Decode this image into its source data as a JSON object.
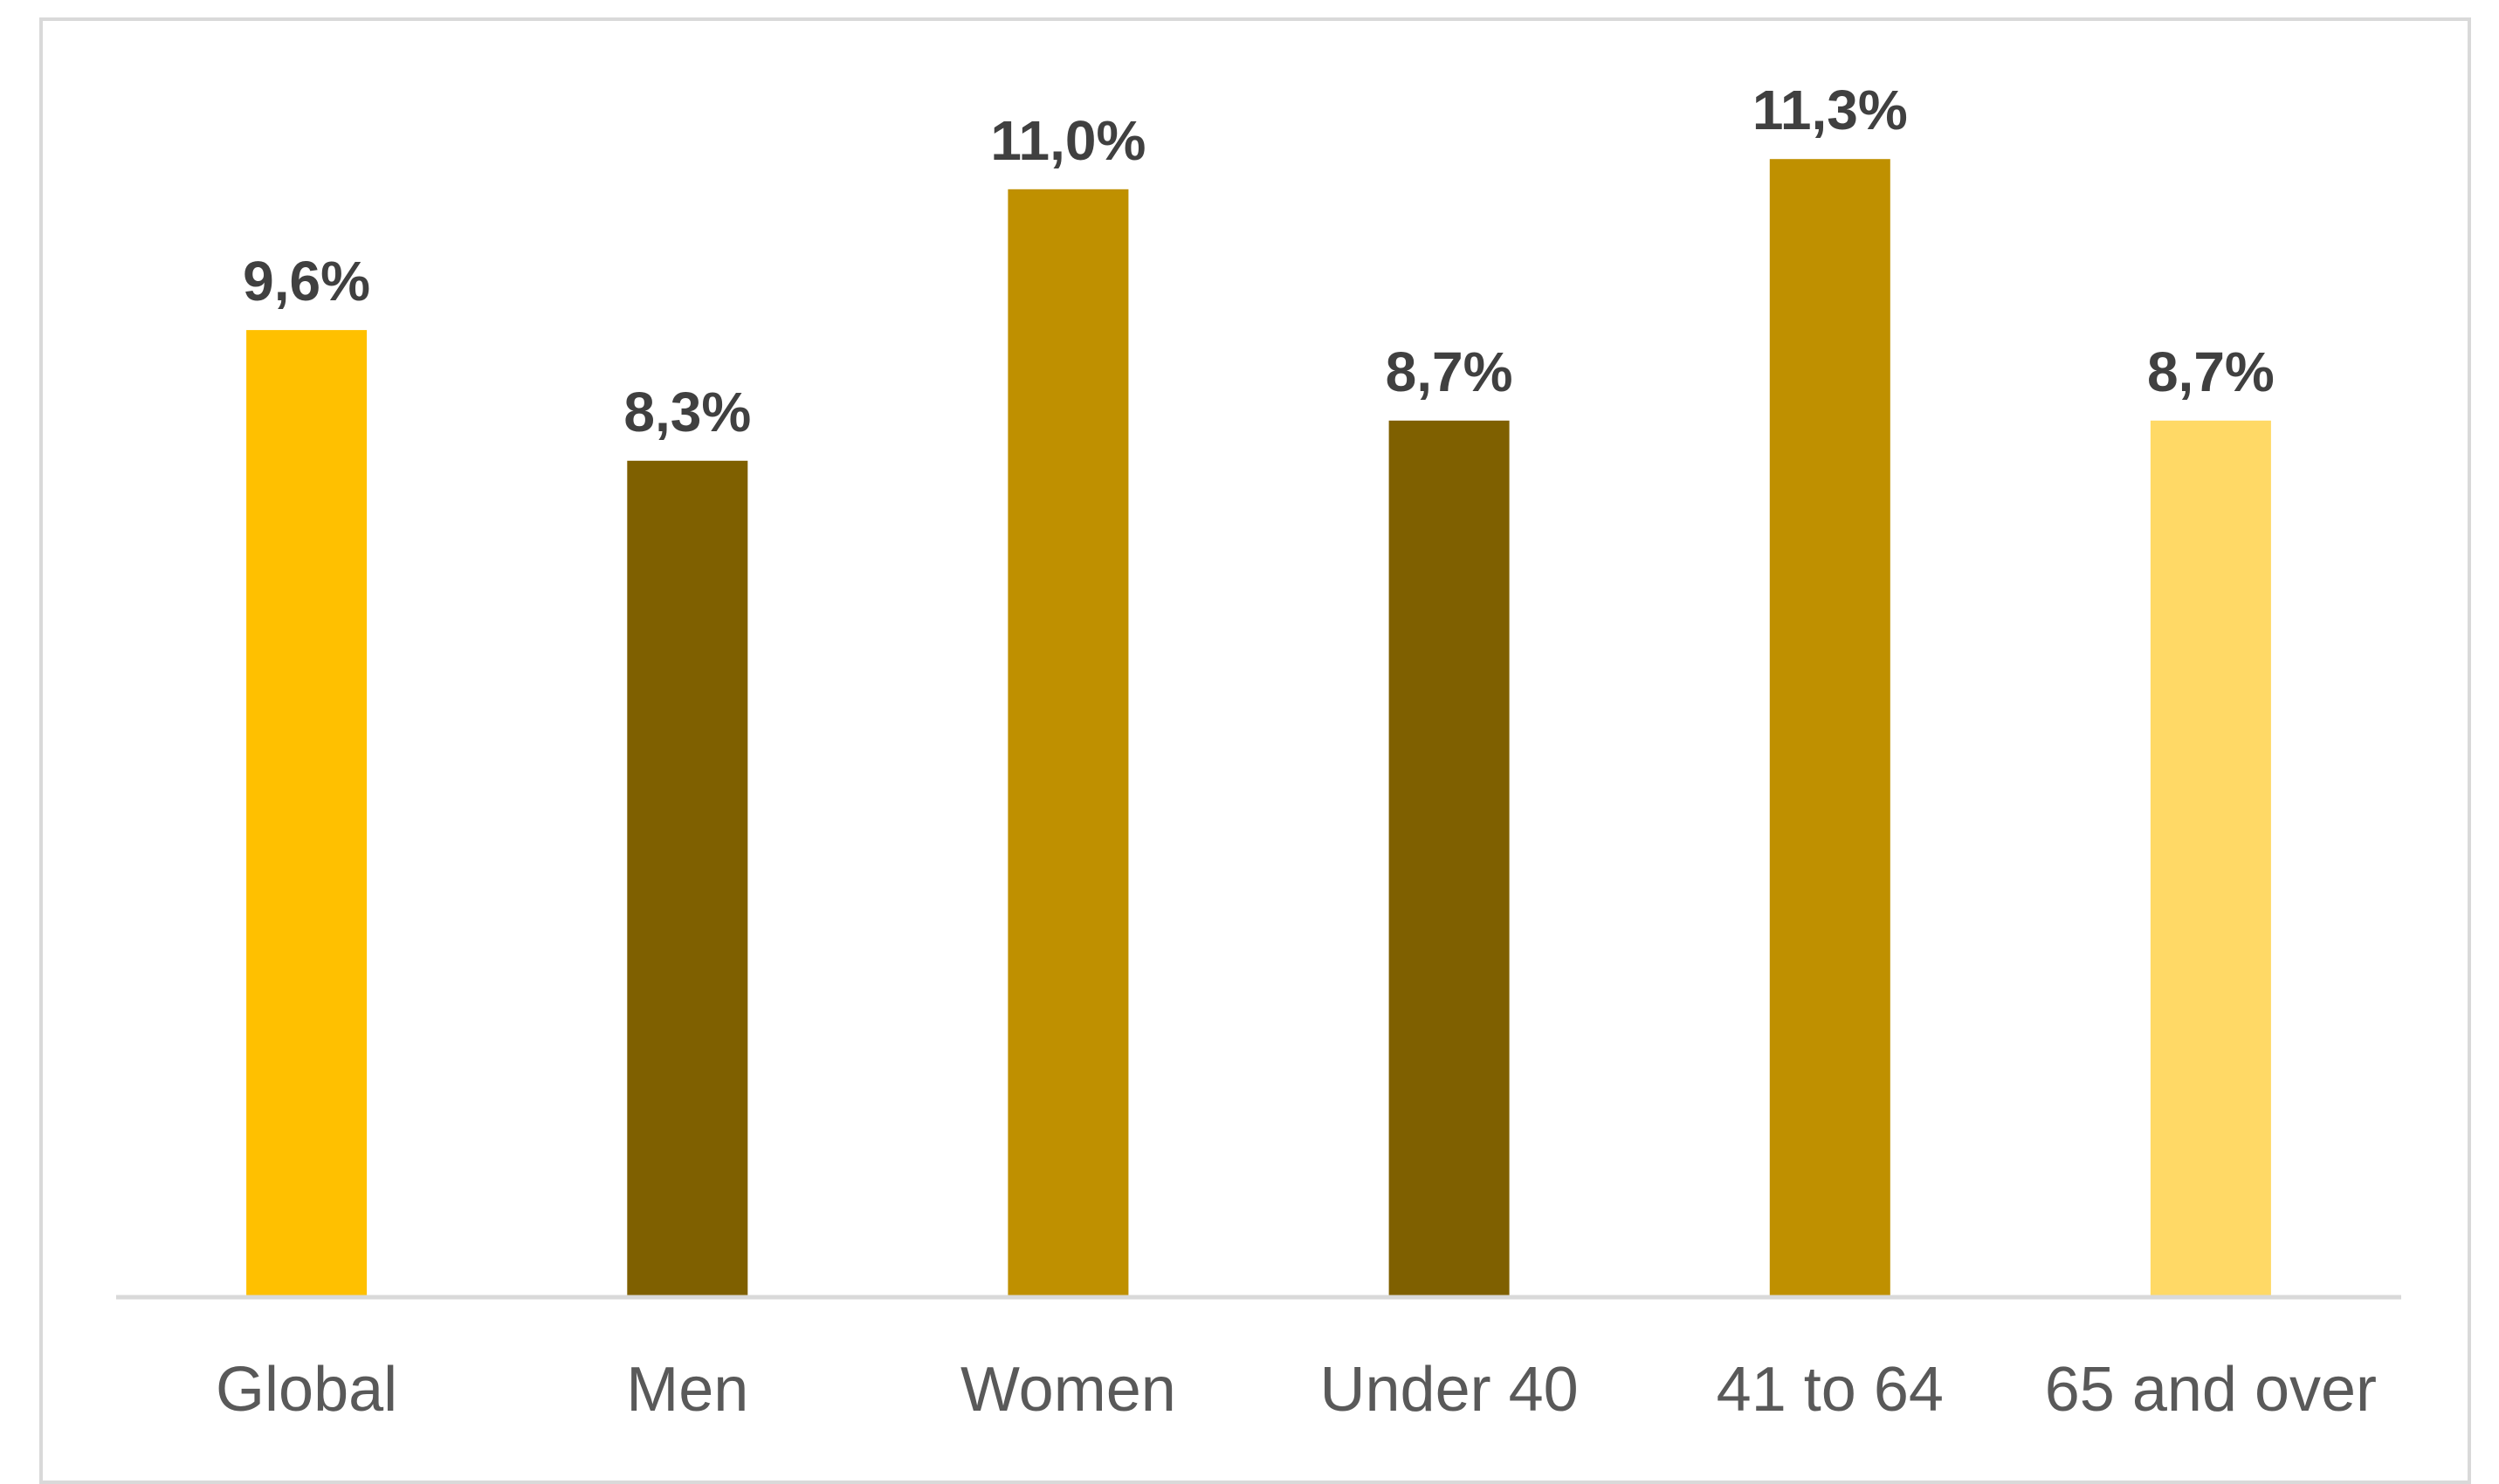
{
  "chart_data": {
    "type": "bar",
    "categories": [
      "Global",
      "Men",
      "Women",
      "Under 40",
      "41 to 64",
      "65 and over"
    ],
    "values": [
      9.6,
      8.3,
      11.0,
      8.7,
      11.3,
      8.7
    ],
    "data_labels": [
      "9,6%",
      "8,3%",
      "11,0%",
      "8,7%",
      "11,3%",
      "8,7%"
    ],
    "colors": [
      "#FFC000",
      "#7F6000",
      "#BF9000",
      "#7F6000",
      "#BF9000",
      "#FFD966"
    ],
    "title": "",
    "xlabel": "",
    "ylabel": "",
    "ylim": [
      0,
      12.5
    ],
    "grid": false,
    "legend": "none"
  }
}
